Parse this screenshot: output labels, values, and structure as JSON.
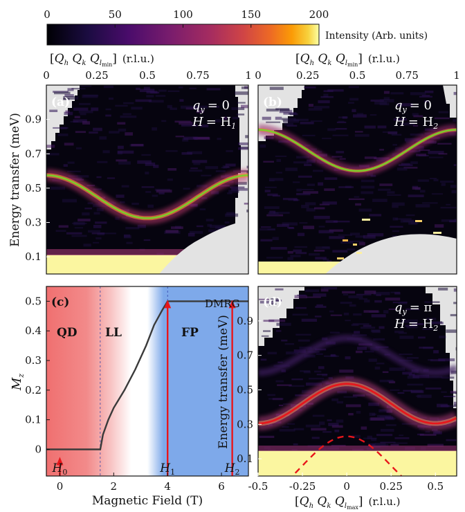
{
  "colorbar": {
    "ticks": [
      "0",
      "50",
      "100",
      "150",
      "200"
    ],
    "tick_values": [
      0,
      50,
      100,
      150,
      200
    ],
    "range": [
      0,
      200
    ],
    "label": "Intensity (Arb. units)"
  },
  "top_axis": {
    "label": "[Q_h Q̄_k Q_l_min] (r.l.u.)",
    "label_parts": [
      "Q",
      "h",
      " Q",
      "k",
      " Q",
      "l",
      "min",
      "(r.l.u.)"
    ],
    "ticks_a": [
      "0",
      "0.25",
      "0.5",
      "0.75",
      "1"
    ],
    "ticks_b": [
      "0",
      "0.25",
      "0.5",
      "0.75",
      "1"
    ]
  },
  "panel_a": {
    "tag": "(a)",
    "ann1": "q",
    "ann1_sub": "y",
    "ann1_val": "= 0",
    "ann2": "H",
    "ann2_val": "= H",
    "ann2_sub": "1",
    "ylabel": "Energy transfer (meV)",
    "yticks": [
      "0.9",
      "0.7",
      "0.5",
      "0.3",
      "0.1"
    ]
  },
  "panel_b": {
    "tag": "(b)",
    "ann1": "q",
    "ann1_sub": "y",
    "ann1_val": "= 0",
    "ann2": "H",
    "ann2_val": "= H",
    "ann2_sub": "2"
  },
  "panel_c": {
    "tag": "(c)",
    "regions": [
      "QD",
      "LL",
      "FP"
    ],
    "method": "DMRG",
    "ylabel": "M",
    "ylabel_sub": "z",
    "xlabel": "Magnetic Field (T)",
    "xticks": [
      "0",
      "2",
      "4",
      "6"
    ],
    "yticks": [
      "0.5",
      "0.4",
      "0.3",
      "0.2",
      "0.1",
      "0"
    ],
    "fields": [
      {
        "name": "H",
        "sub": "0"
      },
      {
        "name": "H",
        "sub": "1"
      },
      {
        "name": "H",
        "sub": "2"
      }
    ]
  },
  "panel_d": {
    "tag": "(d)",
    "ann1": "q",
    "ann1_sub": "y",
    "ann1_val": "= π",
    "ann2": "H",
    "ann2_val": "= H",
    "ann2_sub": "2",
    "ylabel": "Energy transfer (meV)",
    "yticks": [
      "0.9",
      "0.7",
      "0.5",
      "0.3",
      "0.1"
    ],
    "xticks": [
      "-0.5",
      "-0.25",
      "0",
      "0.25",
      "0.5"
    ],
    "xlabel_parts": [
      "Q",
      "h",
      " Q",
      "k",
      " Q",
      "l",
      "max",
      "(r.l.u.)"
    ]
  },
  "colors": {
    "bg": "#06040f",
    "mask": "#e3e3e3",
    "fit_green": "#7ccf2a",
    "fit_red": "#e8161b",
    "qd": "#f07070",
    "fp": "#7ea9ea",
    "curve": "#3a3a3a"
  },
  "chart_data": [
    {
      "type": "heatmap",
      "panel": "a",
      "x_range": [
        0,
        1
      ],
      "y_range": [
        0.0,
        1.1
      ],
      "fit": {
        "mean": 0.45,
        "amp": 0.125,
        "min_x": 0.5
      },
      "note_values": "dispersion E(Q)=0.45+0.125cos(2πQ)"
    },
    {
      "type": "heatmap",
      "panel": "b",
      "x_range": [
        0,
        1
      ],
      "y_range": [
        0.0,
        1.1
      ],
      "fit": {
        "mean": 0.72,
        "amp": 0.12,
        "min_x": 0.5
      }
    },
    {
      "type": "line",
      "panel": "c",
      "x_range": [
        -0.5,
        7
      ],
      "y_range": [
        -0.09,
        0.55
      ],
      "boundaries_T": [
        1.5,
        4.0
      ],
      "curve": {
        "x": [
          -0.5,
          1.5,
          1.6,
          1.8,
          2.0,
          2.4,
          2.8,
          3.2,
          3.5,
          3.8,
          4.0,
          7.0
        ],
        "y": [
          0,
          0,
          0.05,
          0.1,
          0.14,
          0.2,
          0.27,
          0.35,
          0.42,
          0.47,
          0.5,
          0.5
        ]
      },
      "field_markers_T": [
        0,
        4,
        6.4
      ]
    },
    {
      "type": "heatmap",
      "panel": "d",
      "x_range": [
        -0.5,
        0.62
      ],
      "y_range": [
        0.0,
        1.1
      ],
      "fit_red": {
        "mean": 0.42,
        "amp": 0.115,
        "min_x": 0.5
      },
      "dashed": {
        "mean": 0.06,
        "amp": 0.17
      }
    }
  ]
}
